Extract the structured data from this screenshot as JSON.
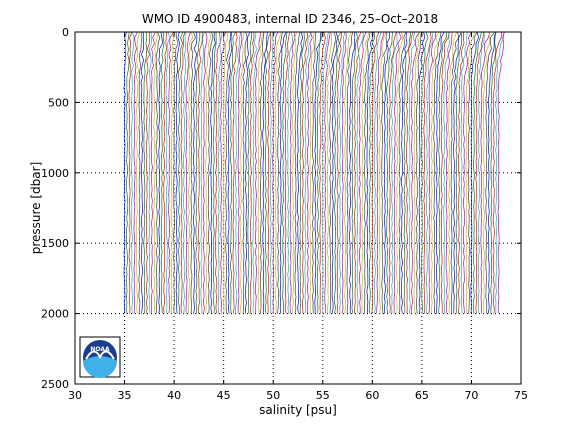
{
  "chart_data": {
    "type": "line",
    "title": "WMO ID 4900483, internal ID 2346, 25–Oct–2018",
    "xlabel": "salinity [psu]",
    "ylabel": "pressure [dbar]",
    "xlim": [
      30,
      75
    ],
    "ylim": [
      2500,
      0
    ],
    "y_reversed": true,
    "xticks": [
      "30",
      "35",
      "40",
      "45",
      "50",
      "55",
      "60",
      "65",
      "70",
      "75"
    ],
    "yticks": [
      "0",
      "500",
      "1000",
      "1500",
      "2000",
      "2500"
    ],
    "grid": "dotted",
    "legend": "none",
    "profile_offset_start": 35.0,
    "profile_offset_end": 72.8,
    "profile_max_pressure": 2000,
    "series_colors": [
      "#0000ff",
      "#008000",
      "#ff0000",
      "#00bfbf",
      "#bf00bf",
      "#bfbf00",
      "#404040"
    ],
    "logo": {
      "label": "NOAA",
      "position": "bottom-left"
    }
  }
}
